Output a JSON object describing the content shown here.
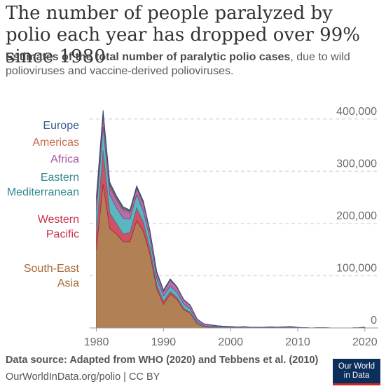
{
  "title": "The number of people paralyzed by polio each year has dropped over 99% since 1980",
  "subtitle_bold": "Estimates of the total number of paralytic polio cases",
  "subtitle_rest": ", due to wild polioviruses and vaccine-derived polioviruses.",
  "footer": {
    "source": "Data source: Adapted from WHO (2020) and Tebbens et al. (2010)",
    "link": "OurWorldInData.org/polio | CC BY"
  },
  "logo": {
    "line1": "Our World",
    "line2": "in Data"
  },
  "colors": {
    "South-East Asia": "#a56a37",
    "Western Pacific": "#c8334a",
    "Eastern Mediterranean": "#3fa9b5",
    "Africa": "#a356a0",
    "Americas": "#c76d4c",
    "Europe": "#3b5a8f"
  },
  "chart_data": {
    "type": "area",
    "stacked": true,
    "x": [
      1980,
      1981,
      1982,
      1983,
      1984,
      1985,
      1986,
      1987,
      1988,
      1989,
      1990,
      1991,
      1992,
      1993,
      1994,
      1995,
      1996,
      1997,
      1998,
      1999,
      2000,
      2001,
      2002,
      2003,
      2004,
      2005,
      2006,
      2007,
      2008,
      2009,
      2010,
      2011,
      2012,
      2013,
      2014,
      2015,
      2016,
      2017,
      2018,
      2019,
      2020
    ],
    "xlim": [
      1979,
      2022
    ],
    "ylim": [
      0,
      440000
    ],
    "y_ticks": [
      0,
      100000,
      200000,
      300000,
      400000
    ],
    "y_tick_labels": [
      "0",
      "100,000",
      "200,000",
      "300,000",
      "400,000"
    ],
    "x_ticks": [
      1980,
      1990,
      2000,
      2010,
      2020
    ],
    "x_tick_labels": [
      "1980",
      "1990",
      "2000",
      "2010",
      "2020"
    ],
    "grid": "horizontal dashed",
    "legend_placement": "left, inline labels",
    "legend_order": [
      "Europe",
      "Americas",
      "Africa",
      "Eastern Mediterranean",
      "Western Pacific",
      "South-East Asia"
    ],
    "legend_labels": {
      "Europe": [
        "Europe"
      ],
      "Americas": [
        "Americas"
      ],
      "Africa": [
        "Africa"
      ],
      "Eastern Mediterranean": [
        "Eastern",
        "Mediterranean"
      ],
      "Western Pacific": [
        "Western",
        "Pacific"
      ],
      "South-East Asia": [
        "South-East",
        "Asia"
      ]
    },
    "series": [
      {
        "name": "South-East Asia",
        "values": [
          150000,
          275000,
          190000,
          180000,
          165000,
          165000,
          205000,
          185000,
          140000,
          75000,
          45000,
          65000,
          55000,
          35000,
          28000,
          8000,
          2000,
          1500,
          1200,
          1000,
          800,
          600,
          1800,
          600,
          400,
          300,
          900,
          800,
          600,
          1000,
          100,
          10,
          0,
          0,
          0,
          0,
          0,
          0,
          0,
          0,
          0
        ]
      },
      {
        "name": "Western Pacific",
        "values": [
          35000,
          65000,
          30000,
          20000,
          15000,
          18000,
          25000,
          18000,
          12000,
          8000,
          6000,
          5000,
          4000,
          3000,
          2000,
          1000,
          400,
          300,
          200,
          100,
          100,
          0,
          0,
          0,
          0,
          0,
          0,
          0,
          0,
          0,
          0,
          20,
          0,
          0,
          0,
          0,
          0,
          0,
          0,
          0,
          0
        ]
      },
      {
        "name": "Eastern Mediterranean",
        "values": [
          40000,
          45000,
          35000,
          30000,
          30000,
          25000,
          25000,
          20000,
          18000,
          12000,
          10000,
          10000,
          9000,
          8000,
          6000,
          3000,
          1500,
          1000,
          800,
          600,
          500,
          300,
          200,
          200,
          200,
          150,
          150,
          100,
          200,
          150,
          150,
          150,
          60,
          100,
          350,
          80,
          40,
          100,
          60,
          180,
          900
        ]
      },
      {
        "name": "Africa",
        "values": [
          15000,
          20000,
          15000,
          15000,
          15000,
          12000,
          12000,
          15000,
          12000,
          10000,
          9000,
          12000,
          10000,
          8000,
          7000,
          5000,
          4000,
          3000,
          2000,
          1500,
          1200,
          900,
          500,
          500,
          900,
          1000,
          1000,
          500,
          1300,
          1300,
          500,
          500,
          150,
          400,
          60,
          20,
          10,
          20,
          30,
          350,
          600
        ]
      },
      {
        "name": "Americas",
        "values": [
          6000,
          5000,
          4000,
          4000,
          3000,
          3000,
          2000,
          2000,
          1500,
          1000,
          800,
          500,
          300,
          200,
          100,
          50,
          20,
          10,
          5,
          5,
          5,
          0,
          0,
          0,
          0,
          0,
          0,
          0,
          0,
          0,
          0,
          0,
          0,
          0,
          0,
          0,
          0,
          0,
          0,
          0,
          0
        ]
      },
      {
        "name": "Europe",
        "values": [
          7000,
          7000,
          5000,
          4000,
          4000,
          3000,
          3000,
          3000,
          2000,
          2000,
          2000,
          1500,
          1000,
          800,
          500,
          300,
          200,
          150,
          100,
          50,
          20,
          10,
          20,
          10,
          10,
          10,
          0,
          0,
          0,
          0,
          500,
          20,
          0,
          0,
          0,
          0,
          0,
          0,
          0,
          0,
          0
        ]
      }
    ]
  }
}
